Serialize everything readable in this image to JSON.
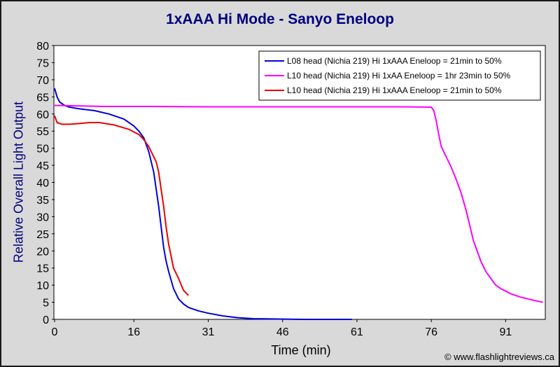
{
  "chart_data": {
    "type": "line",
    "title": "1xAAA Hi Mode - Sanyo Eneloop",
    "xlabel": "Time (min)",
    "ylabel": "Relative Overall Light Output",
    "xlim": [
      0,
      99
    ],
    "ylim": [
      0,
      80
    ],
    "xticks": [
      0,
      16,
      31,
      46,
      61,
      76,
      91
    ],
    "yticks": [
      0,
      5,
      10,
      15,
      20,
      25,
      30,
      35,
      40,
      45,
      50,
      55,
      60,
      65,
      70,
      75,
      80
    ],
    "grid": false,
    "legend_position": "top-right",
    "series": [
      {
        "name": "L08 head (Nichia 219) Hi 1xAAA Eneloop = 21min to 50%",
        "color": "#0000dd",
        "x": [
          0,
          0.5,
          1,
          2,
          3,
          5,
          8,
          11,
          14,
          16,
          17,
          18,
          19,
          20,
          21,
          21.5,
          22,
          22.5,
          23,
          24,
          25,
          26,
          27,
          29,
          31,
          34,
          37,
          40,
          45,
          50,
          60
        ],
        "y": [
          67.5,
          65,
          63.5,
          62.5,
          62,
          61.5,
          61,
          60,
          58.5,
          56.5,
          55,
          53,
          49,
          43,
          33,
          27,
          21,
          17,
          14,
          9,
          6,
          4.5,
          3.5,
          2.5,
          1.8,
          1,
          0.5,
          0.2,
          0.1,
          0,
          0
        ]
      },
      {
        "name": "L10 head (Nichia 219) Hi 1xAA Eneloop = 1hr 23min to 50%",
        "color": "#ff00ff",
        "x": [
          0,
          10,
          20,
          30,
          40,
          50,
          60,
          70,
          76,
          76.5,
          77,
          77.5,
          78,
          79,
          80,
          81,
          82,
          83,
          84,
          84.5,
          85,
          86,
          87,
          88,
          89,
          90,
          92,
          94,
          96,
          98.5
        ],
        "y": [
          62.5,
          62.2,
          62.2,
          62.1,
          62.1,
          62.1,
          62.1,
          62.1,
          62,
          61,
          58,
          54,
          50.5,
          47.5,
          44.5,
          41,
          37,
          32,
          26,
          23,
          21,
          17,
          14,
          12,
          10,
          9,
          7.5,
          6.5,
          5.8,
          5
        ]
      },
      {
        "name": "L10 head (Nichia 219) Hi 1xAAA Eneloop = 21min to 50%",
        "color": "#ee0000",
        "x": [
          0,
          0.5,
          1.5,
          3,
          5,
          7,
          9,
          12,
          15,
          17,
          18,
          19,
          20,
          20.5,
          21,
          21.5,
          22,
          22.5,
          23,
          24,
          25,
          26,
          27
        ],
        "y": [
          59.5,
          57.5,
          57,
          57,
          57.2,
          57.5,
          57.5,
          56.8,
          55.5,
          54,
          52.5,
          50.5,
          47.5,
          46,
          43,
          38,
          33,
          27,
          22,
          15,
          12,
          8.5,
          7
        ]
      }
    ]
  },
  "credit": "© www.flashlightreviews.ca"
}
